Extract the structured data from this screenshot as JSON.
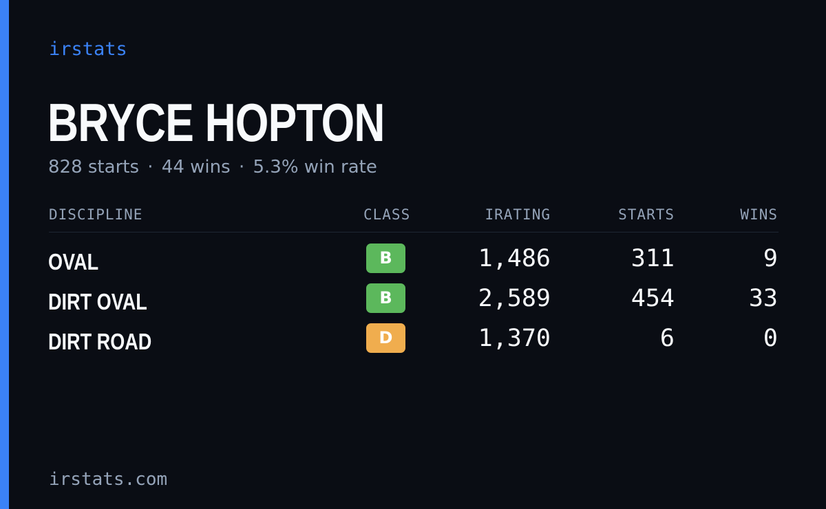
{
  "brand": "irstats",
  "driver": {
    "name": "BRYCE HOPTON",
    "starts_text": "828 starts",
    "wins_text": "44 wins",
    "win_rate_text": "5.3% win rate",
    "separator": "·"
  },
  "table": {
    "headers": {
      "discipline": "DISCIPLINE",
      "class": "CLASS",
      "irating": "IRATING",
      "starts": "STARTS",
      "wins": "WINS"
    },
    "rows": [
      {
        "discipline": "OVAL",
        "class": "B",
        "class_color": "#5cb85c",
        "irating": "1,486",
        "starts": "311",
        "wins": "9"
      },
      {
        "discipline": "DIRT OVAL",
        "class": "B",
        "class_color": "#5cb85c",
        "irating": "2,589",
        "starts": "454",
        "wins": "33"
      },
      {
        "discipline": "DIRT ROAD",
        "class": "D",
        "class_color": "#f0ad4e",
        "irating": "1,370",
        "starts": "6",
        "wins": "0"
      }
    ]
  },
  "footer": "irstats.com",
  "colors": {
    "background": "#0a0d14",
    "accent": "#3b82f6",
    "text": "#f8fafc",
    "muted": "#94a3b8"
  }
}
